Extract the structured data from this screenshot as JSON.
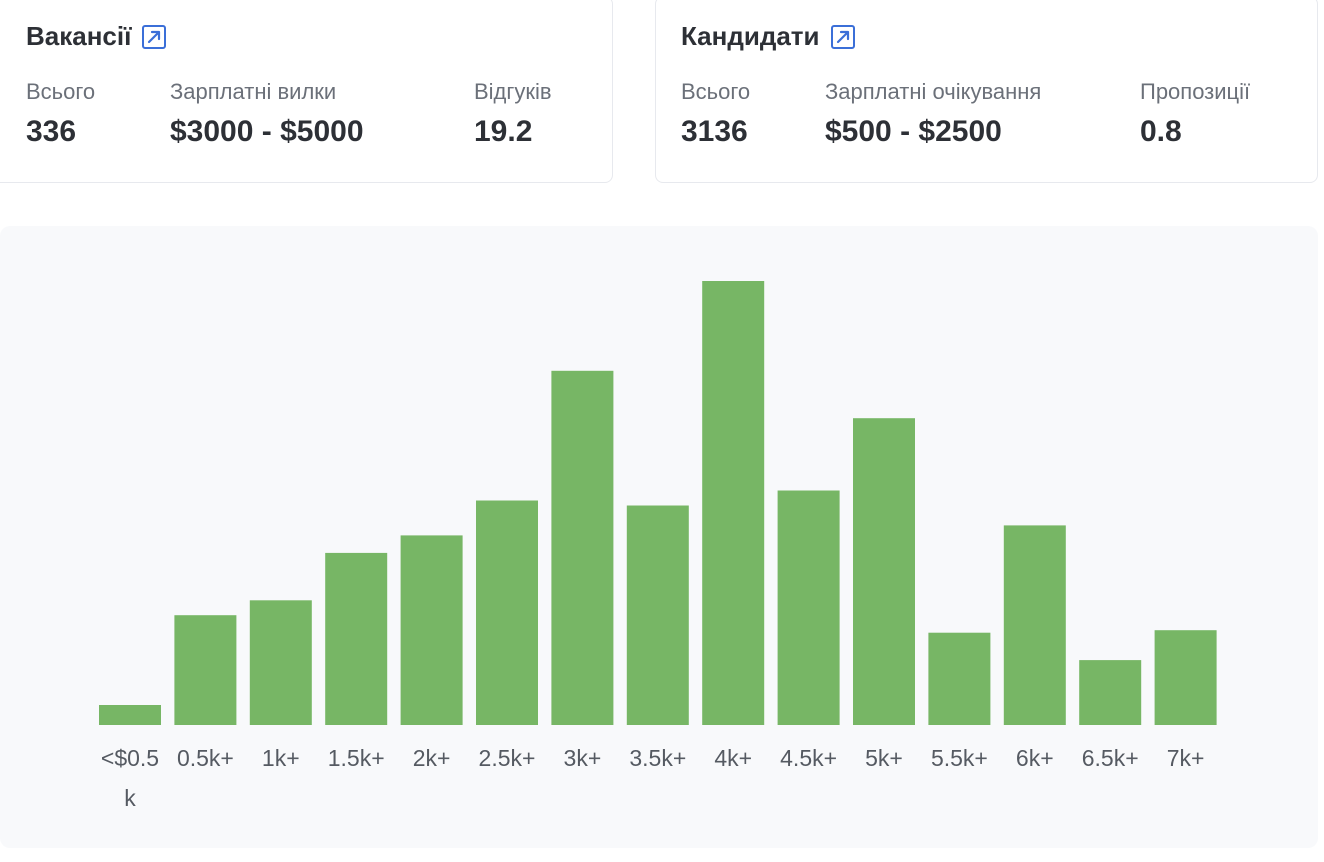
{
  "vacancies": {
    "title": "Вакансії",
    "stats": [
      {
        "label": "Всього",
        "value": "336"
      },
      {
        "label": "Зарплатні вилки",
        "value": "$3000 - $5000"
      },
      {
        "label": "Відгуків",
        "value": "19.2"
      }
    ]
  },
  "candidates": {
    "title": "Кандидати",
    "stats": [
      {
        "label": "Всього",
        "value": "3136"
      },
      {
        "label": "Зарплатні очікування",
        "value": "$500 - $2500"
      },
      {
        "label": "Пропозиції",
        "value": "0.8"
      }
    ]
  },
  "colors": {
    "bar": "#77b665",
    "icon": "#3b6fd8"
  },
  "chart_data": {
    "type": "bar",
    "title": "",
    "xlabel": "",
    "ylabel": "",
    "categories": [
      "<$0.5k",
      "0.5k+",
      "1k+",
      "1.5k+",
      "2k+",
      "2.5k+",
      "3k+",
      "3.5k+",
      "4k+",
      "4.5k+",
      "5k+",
      "5.5k+",
      "6k+",
      "6.5k+",
      "7k+"
    ],
    "values": [
      4,
      22,
      25,
      34.5,
      38,
      45,
      71,
      44,
      89,
      47,
      61.5,
      18.5,
      40,
      13,
      19
    ],
    "ylim": [
      0,
      89
    ],
    "grid": false,
    "legend": "none"
  }
}
